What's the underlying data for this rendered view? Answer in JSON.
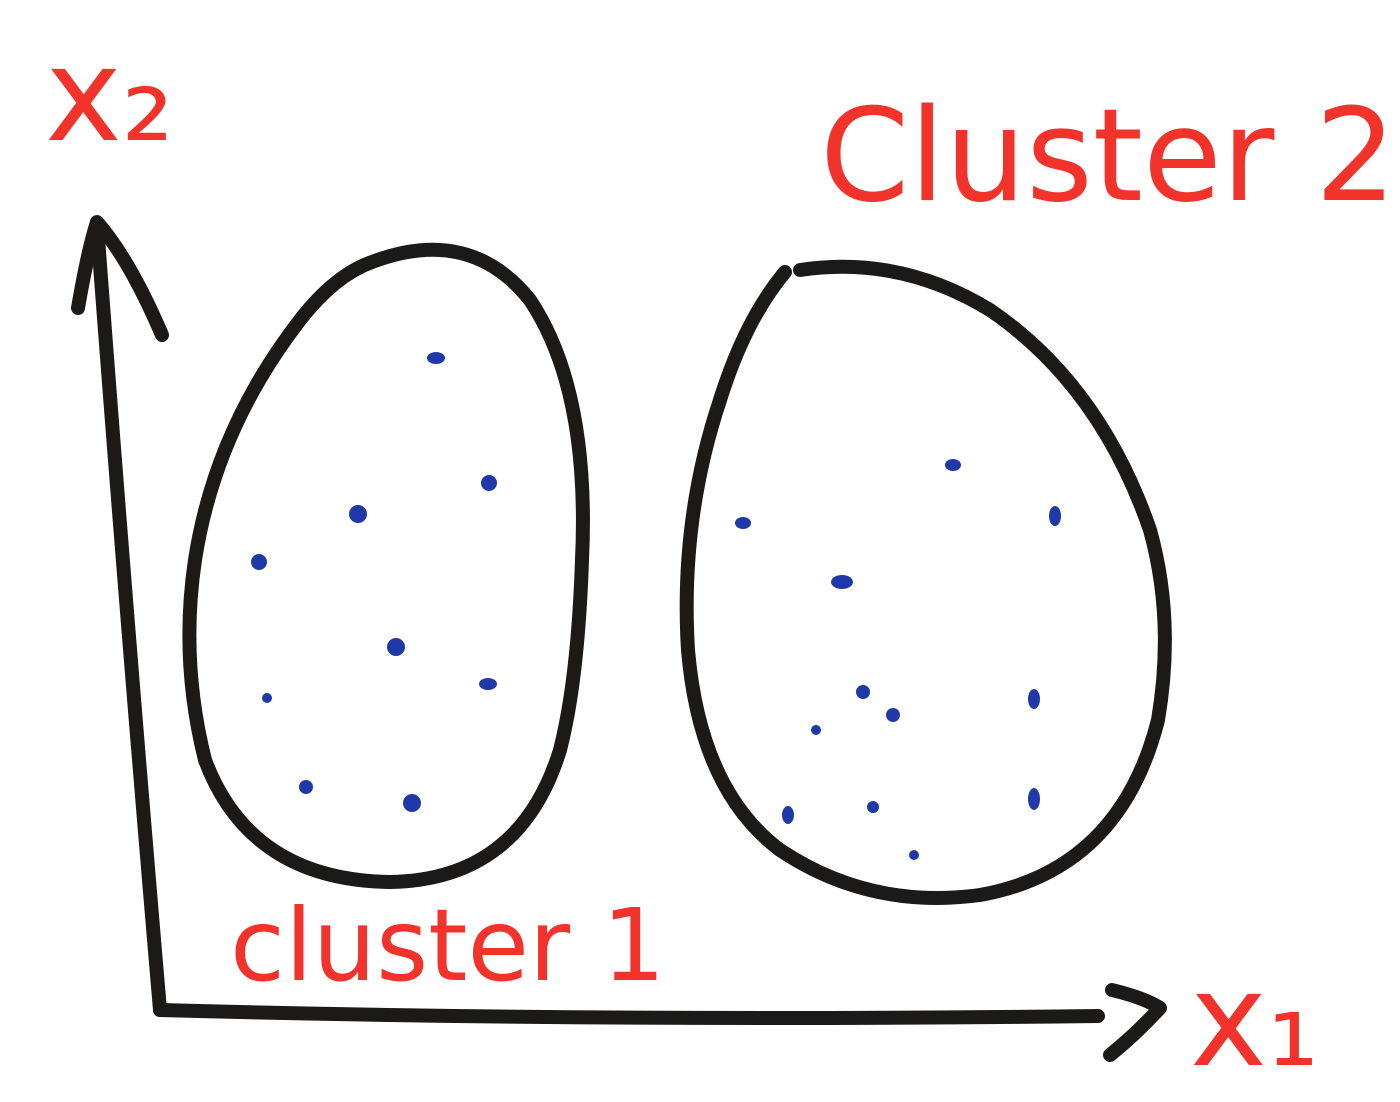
{
  "axes": {
    "y_label": "x₂",
    "x_label": "x₁"
  },
  "clusters": [
    {
      "label": "cluster 1"
    },
    {
      "label": "Cluster 2"
    }
  ]
}
